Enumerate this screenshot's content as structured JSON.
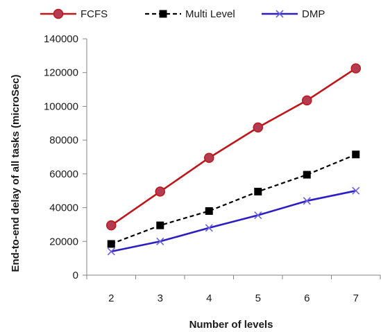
{
  "chart_data": {
    "type": "line",
    "title": "",
    "xlabel": "Number of levels",
    "ylabel": "End-to-end delay of all  tasks  (microSec)",
    "categories": [
      "2",
      "3",
      "4",
      "5",
      "6",
      "7"
    ],
    "ylim": [
      0,
      140000
    ],
    "yticks": [
      "0",
      "20000",
      "40000",
      "60000",
      "80000",
      "100000",
      "120000",
      "140000"
    ],
    "grid": false,
    "legend_position": "top",
    "series": [
      {
        "name": "FCFS",
        "values": [
          29500,
          49500,
          69500,
          87500,
          103500,
          122500
        ],
        "color": "#c0161a",
        "marker": "circle",
        "marker_fill": "#b43c52",
        "line_style": "solid"
      },
      {
        "name": "Multi Level",
        "values": [
          18500,
          29500,
          38000,
          49500,
          59500,
          71500
        ],
        "color": "#000000",
        "marker": "square",
        "marker_fill": "#000000",
        "line_style": "dashed"
      },
      {
        "name": "DMP",
        "values": [
          14000,
          20000,
          28000,
          35500,
          44000,
          50000
        ],
        "color": "#2b1fc4",
        "marker": "x",
        "marker_fill": "#6b62e0",
        "line_style": "solid"
      }
    ]
  }
}
